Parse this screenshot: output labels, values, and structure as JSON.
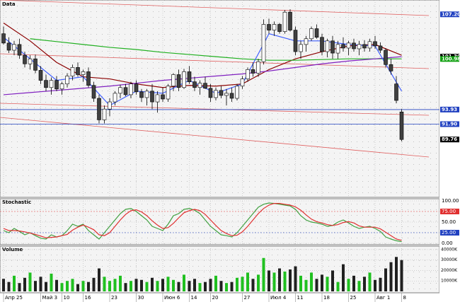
{
  "chart_data": {
    "type": "candlestick",
    "panels": [
      "Data",
      "Stochastic",
      "Volume"
    ],
    "categories": [
      "Апр 25",
      null,
      null,
      null,
      null,
      null,
      null,
      "Май 3",
      null,
      null,
      null,
      "10",
      null,
      null,
      null,
      "16",
      null,
      null,
      null,
      null,
      "23",
      null,
      null,
      null,
      null,
      "30",
      null,
      null,
      null,
      null,
      "Июн 6",
      null,
      null,
      null,
      null,
      "14",
      null,
      null,
      null,
      "20",
      null,
      null,
      null,
      null,
      null,
      "27",
      null,
      null,
      null,
      null,
      "Июл 4",
      null,
      null,
      null,
      null,
      "11",
      null,
      null,
      null,
      null,
      "18",
      null,
      null,
      null,
      null,
      "25",
      null,
      null,
      null,
      null,
      "Авг 1",
      null,
      null,
      null,
      null,
      "8"
    ],
    "open": [
      104.5,
      103.2,
      102.2,
      103.0,
      101.5,
      100.3,
      101.0,
      99.4,
      98.0,
      97.0,
      98.0,
      96.8,
      97.5,
      98.6,
      99.8,
      98.8,
      99.2,
      97.3,
      95.5,
      92.5,
      94.0,
      95.0,
      96.2,
      97.0,
      96.0,
      97.5,
      96.4,
      95.6,
      96.5,
      95.0,
      96.0,
      95.4,
      97.2,
      98.8,
      97.0,
      99.2,
      97.8,
      97.0,
      97.6,
      96.9,
      95.6,
      96.6,
      95.9,
      96.2,
      95.5,
      97.2,
      98.2,
      99.5,
      99.0,
      100.6,
      105.8,
      105.0,
      105.8,
      104.8,
      107.5,
      105.0,
      102.0,
      103.0,
      103.8,
      105.2,
      104.0,
      102.0,
      103.5,
      101.8,
      103.0,
      102.5,
      103.2,
      102.4,
      103.0,
      102.5,
      103.4,
      102.8,
      102.2,
      100.2,
      97.5,
      93.6
    ],
    "high": [
      105.5,
      104.0,
      103.5,
      103.8,
      102.0,
      101.5,
      101.6,
      100.0,
      98.8,
      98.4,
      98.6,
      97.8,
      99.0,
      100.2,
      100.5,
      99.5,
      99.8,
      97.8,
      96.0,
      94.5,
      95.5,
      96.5,
      97.4,
      97.5,
      97.8,
      98.0,
      96.8,
      96.8,
      97.5,
      96.5,
      97.0,
      97.5,
      99.0,
      99.5,
      99.6,
      100.0,
      98.5,
      98.0,
      98.5,
      97.5,
      97.0,
      97.2,
      96.8,
      97.0,
      97.5,
      98.6,
      99.8,
      100.5,
      101.0,
      106.5,
      106.6,
      106.2,
      106.0,
      107.8,
      107.9,
      105.5,
      103.5,
      104.2,
      105.5,
      105.8,
      104.5,
      103.8,
      104.2,
      103.5,
      104.0,
      103.5,
      103.8,
      103.5,
      103.6,
      103.8,
      104.2,
      103.3,
      102.5,
      101.0,
      98.6,
      94.0
    ],
    "low": [
      103.0,
      101.8,
      101.5,
      101.0,
      99.8,
      99.5,
      99.0,
      97.5,
      96.5,
      96.0,
      96.5,
      96.0,
      97.0,
      98.0,
      98.5,
      97.8,
      97.0,
      95.0,
      92.0,
      92.0,
      93.0,
      94.5,
      95.5,
      95.8,
      95.5,
      96.0,
      95.0,
      94.5,
      94.0,
      93.5,
      95.0,
      95.0,
      96.5,
      96.5,
      96.8,
      97.5,
      96.5,
      96.0,
      96.8,
      95.0,
      95.2,
      95.5,
      94.5,
      95.0,
      95.2,
      96.8,
      97.8,
      98.5,
      98.5,
      100.2,
      104.5,
      104.2,
      104.5,
      104.5,
      104.8,
      101.5,
      101.0,
      102.0,
      103.5,
      103.8,
      101.5,
      101.2,
      101.0,
      101.0,
      102.0,
      101.5,
      102.0,
      101.5,
      102.0,
      102.0,
      102.4,
      101.8,
      99.8,
      98.8,
      94.8,
      89.5
    ],
    "close": [
      103.2,
      102.2,
      103.0,
      101.5,
      100.3,
      101.0,
      99.4,
      98.0,
      97.0,
      98.0,
      96.8,
      97.5,
      98.6,
      99.8,
      98.8,
      99.2,
      97.3,
      95.5,
      92.5,
      94.0,
      95.0,
      96.2,
      97.0,
      96.0,
      97.5,
      96.4,
      95.6,
      96.5,
      95.0,
      96.0,
      95.4,
      97.2,
      98.8,
      97.0,
      99.2,
      97.8,
      97.0,
      97.6,
      96.9,
      95.6,
      96.6,
      95.9,
      96.2,
      95.5,
      97.2,
      98.2,
      99.5,
      99.0,
      100.6,
      105.8,
      105.0,
      105.8,
      104.8,
      107.5,
      105.0,
      102.0,
      103.0,
      103.8,
      105.2,
      104.0,
      102.0,
      103.5,
      101.8,
      103.0,
      102.5,
      103.2,
      102.4,
      103.0,
      102.5,
      103.4,
      102.8,
      102.2,
      100.2,
      99.3,
      95.2,
      89.76
    ],
    "ylim": [
      81.8,
      109.0
    ],
    "lines": [
      {
        "color": "#8b0000",
        "x": [
          0,
          5,
          10,
          15,
          20,
          25,
          30,
          35,
          40,
          45,
          50,
          55,
          60,
          65,
          70,
          75
        ],
        "values": [
          106.0,
          103.5,
          100.5,
          98.5,
          98.2,
          97.5,
          97.0,
          97.3,
          97.2,
          97.5,
          99.5,
          101.0,
          102.0,
          102.8,
          103.0,
          101.5
        ]
      },
      {
        "color": "#20b020",
        "x": [
          0,
          5,
          10,
          15,
          20,
          25,
          30,
          35,
          40,
          45,
          50,
          55,
          60,
          65,
          70,
          75
        ],
        "values": [
          null,
          103.8,
          103.4,
          103.0,
          102.6,
          102.3,
          101.9,
          101.6,
          101.3,
          101.0,
          100.8,
          100.8,
          100.9,
          101.0,
          101.0,
          101.0
        ]
      },
      {
        "color": "#8020c0",
        "x": [
          0,
          5,
          10,
          15,
          20,
          25,
          30,
          35,
          40,
          45,
          50,
          55,
          60,
          65,
          70,
          75
        ],
        "values": [
          96.0,
          96.3,
          96.6,
          96.9,
          97.2,
          97.6,
          98.0,
          98.3,
          98.6,
          98.9,
          99.3,
          99.8,
          100.3,
          100.7,
          101.0,
          101.3
        ]
      },
      {
        "color": "#4060ff",
        "x": [
          0,
          5,
          10,
          15,
          20,
          25,
          30,
          35,
          40,
          45,
          50,
          55,
          60,
          65,
          70,
          75
        ],
        "values": [
          104.0,
          101.0,
          98.0,
          98.5,
          94.5,
          96.5,
          96.2,
          98.0,
          96.2,
          97.5,
          104.5,
          103.5,
          103.5,
          103.0,
          102.8,
          96.5
        ]
      }
    ],
    "price_labels": [
      {
        "value": 107.2,
        "label": "107.20",
        "color": "#2040c0"
      },
      {
        "value": 101.3,
        "label": "101.30",
        "color": "#000000"
      },
      {
        "value": 100.98,
        "label": "100.98",
        "color": "#10a010"
      },
      {
        "value": 93.93,
        "label": "93.93",
        "color": "#2040c0",
        "line": true
      },
      {
        "value": 91.9,
        "label": "91.90",
        "color": "#2040c0",
        "line": true
      },
      {
        "value": 89.76,
        "label": "89.76",
        "color": "#000000"
      }
    ],
    "stochastic": {
      "ylim": [
        0,
        100
      ],
      "yticks": [
        {
          "value": 100,
          "label": "100.00"
        },
        {
          "value": 75,
          "label": "75.00",
          "color": "#e03030"
        },
        {
          "value": 50,
          "label": "50.00"
        },
        {
          "value": 25,
          "label": "25.00",
          "color": "#2040c0"
        },
        {
          "value": 0,
          "label": "0.00"
        }
      ],
      "series": [
        {
          "color": "#40a040",
          "values": [
            30,
            25,
            35,
            28,
            20,
            25,
            18,
            12,
            10,
            20,
            15,
            18,
            30,
            45,
            40,
            45,
            30,
            20,
            10,
            25,
            40,
            55,
            70,
            80,
            82,
            75,
            65,
            55,
            40,
            35,
            30,
            45,
            65,
            70,
            80,
            82,
            78,
            70,
            55,
            40,
            30,
            20,
            18,
            15,
            25,
            40,
            55,
            70,
            85,
            92,
            95,
            94,
            92,
            90,
            88,
            80,
            65,
            55,
            50,
            48,
            45,
            40,
            42,
            50,
            55,
            48,
            40,
            35,
            38,
            40,
            35,
            28,
            15,
            10,
            6,
            4
          ]
        },
        {
          "color": "#e03030",
          "values": [
            35,
            30,
            30,
            29,
            27,
            24,
            21,
            17,
            13,
            14,
            15,
            18,
            21,
            31,
            38,
            43,
            38,
            32,
            20,
            18,
            25,
            40,
            55,
            68,
            77,
            79,
            74,
            65,
            53,
            43,
            35,
            37,
            47,
            60,
            72,
            77,
            80,
            77,
            68,
            55,
            42,
            30,
            23,
            18,
            19,
            27,
            40,
            55,
            70,
            82,
            90,
            94,
            94,
            92,
            90,
            86,
            78,
            67,
            57,
            51,
            48,
            44,
            42,
            44,
            49,
            51,
            48,
            41,
            38,
            38,
            38,
            34,
            26,
            18,
            10,
            7
          ]
        }
      ]
    },
    "volume": {
      "ylim": [
        0,
        42000
      ],
      "yticks": [
        {
          "value": 40000,
          "label": "40000K"
        },
        {
          "value": 30000,
          "label": "30000K"
        },
        {
          "value": 20000,
          "label": "20000K"
        },
        {
          "value": 10000,
          "label": "10000K"
        }
      ],
      "up_color": "#20c020",
      "down_color": "#202020",
      "values": [
        12000,
        9000,
        15000,
        8000,
        13000,
        18000,
        10000,
        14000,
        9000,
        17000,
        11000,
        8000,
        10000,
        12000,
        7000,
        10000,
        9000,
        13000,
        22000,
        14000,
        10000,
        12000,
        15000,
        8000,
        10000,
        12000,
        11000,
        9000,
        13000,
        10000,
        12000,
        14000,
        11000,
        9000,
        16000,
        10000,
        12000,
        8000,
        9000,
        12000,
        15000,
        10000,
        8000,
        9000,
        13000,
        14000,
        18000,
        12000,
        16000,
        32000,
        20000,
        18000,
        22000,
        19000,
        21000,
        24000,
        15000,
        11000,
        18000,
        12000,
        16000,
        14000,
        20000,
        9000,
        26000,
        12000,
        15000,
        10000,
        14000,
        18000,
        11000,
        13000,
        22000,
        28000,
        33000,
        30000
      ]
    }
  }
}
